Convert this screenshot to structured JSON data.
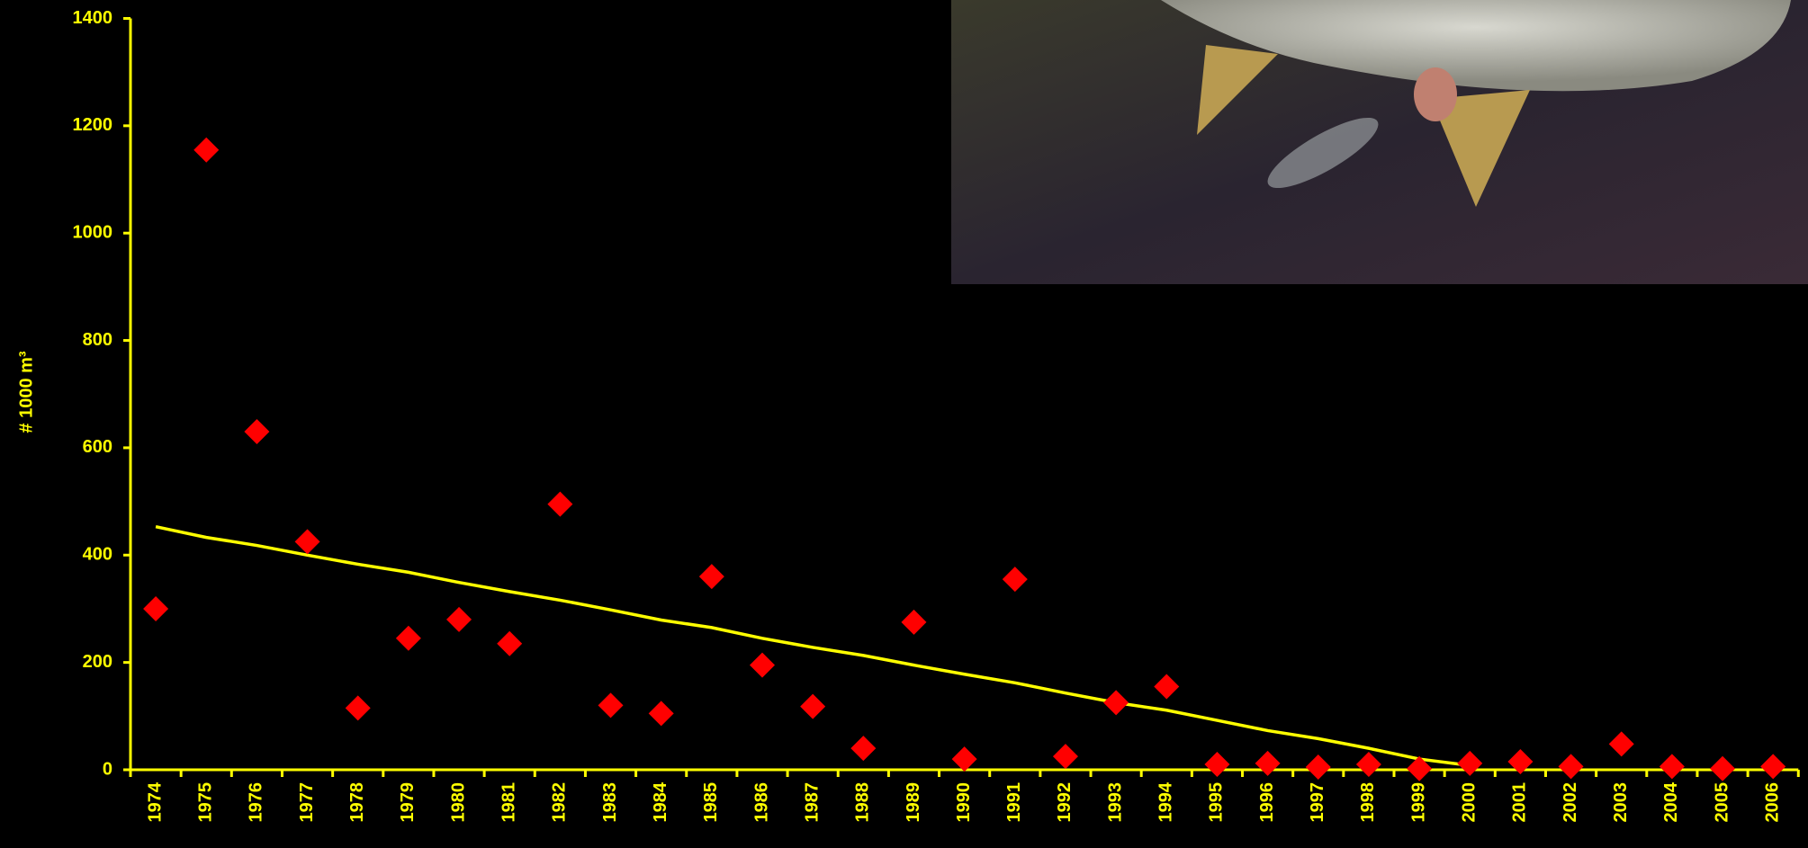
{
  "chart_data": {
    "type": "scatter",
    "ylabel": "# 1000 m³",
    "categories": [
      "1974",
      "1975",
      "1976",
      "1977",
      "1978",
      "1979",
      "1980",
      "1981",
      "1982",
      "1983",
      "1984",
      "1985",
      "1986",
      "1987",
      "1988",
      "1989",
      "1990",
      "1991",
      "1992",
      "1993",
      "1994",
      "1995",
      "1996",
      "1997",
      "1998",
      "1999",
      "2000",
      "2001",
      "2002",
      "2003",
      "2004",
      "2005",
      "2006"
    ],
    "series": [
      {
        "style": "markers",
        "color": "#ff0000",
        "values": [
          300,
          1155,
          630,
          425,
          115,
          245,
          280,
          235,
          495,
          120,
          105,
          360,
          195,
          118,
          40,
          275,
          20,
          355,
          25,
          125,
          155,
          10,
          12,
          5,
          10,
          2,
          12,
          15,
          6,
          48,
          6,
          2,
          6
        ]
      },
      {
        "style": "line",
        "color": "#ffff00",
        "values": [
          453,
          433,
          418,
          400,
          383,
          368,
          349,
          332,
          316,
          298,
          279,
          265,
          245,
          228,
          213,
          195,
          178,
          162,
          143,
          125,
          111,
          92,
          73,
          58,
          40,
          20,
          8,
          null,
          null,
          null,
          null,
          null,
          null
        ]
      }
    ],
    "ylim": [
      0,
      1400
    ],
    "yticks": [
      0,
      200,
      400,
      600,
      800,
      1000,
      1200,
      1400
    ],
    "axis_color": "#ffff00"
  }
}
